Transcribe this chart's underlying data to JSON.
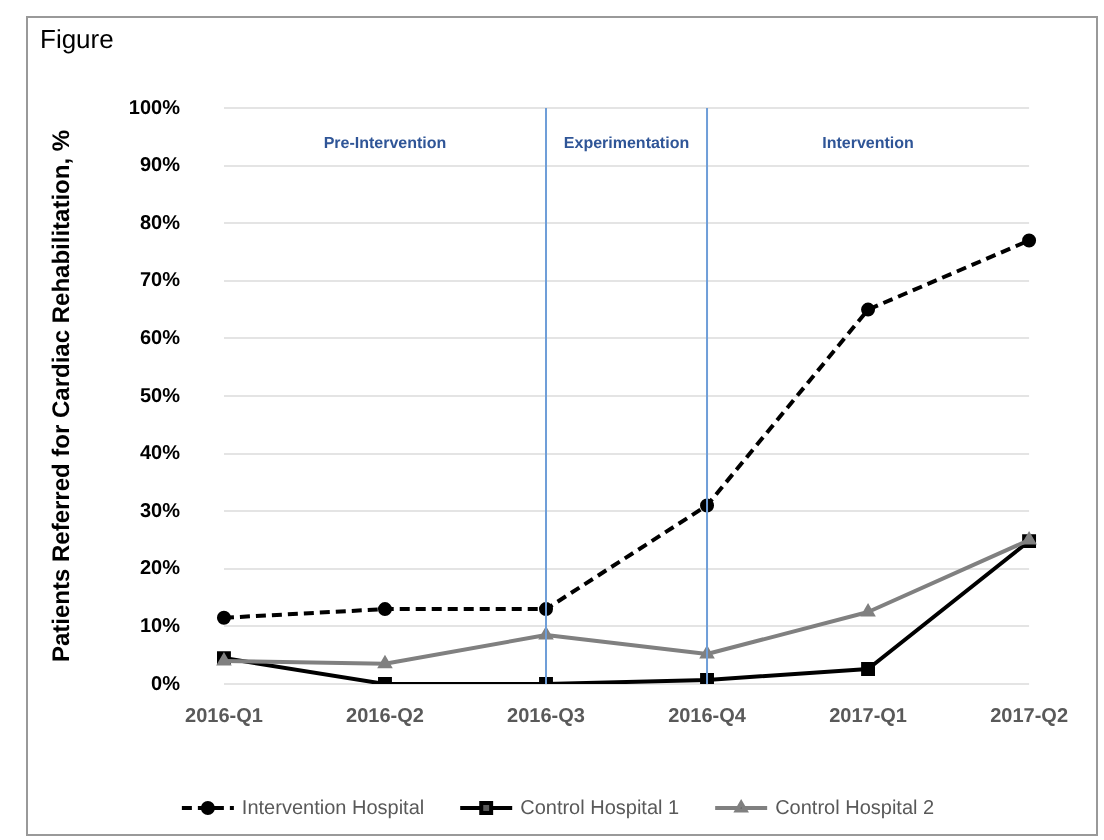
{
  "chart_data": {
    "type": "line",
    "title": "Figure",
    "ylabel": "Patients Referred for Cardiac Rehabilitation, %",
    "categories": [
      "2016-Q1",
      "2016-Q2",
      "2016-Q3",
      "2016-Q4",
      "2017-Q1",
      "2017-Q2"
    ],
    "series": [
      {
        "name": "Intervention Hospital",
        "color": "#000000",
        "marker": "circle",
        "line_style": "dashed",
        "values": [
          11.5,
          13,
          13,
          31,
          65,
          77
        ]
      },
      {
        "name": "Control Hospital 1",
        "color": "#000000",
        "marker": "square",
        "line_style": "solid",
        "values": [
          4.5,
          0,
          0,
          0.7,
          2.6,
          24.8
        ]
      },
      {
        "name": "Control Hospital 2",
        "color": "#808080",
        "marker": "triangle",
        "line_style": "solid",
        "values": [
          4,
          3.5,
          8.5,
          5.2,
          12.5,
          25
        ]
      }
    ],
    "ylim": [
      0,
      100
    ],
    "yticks": [
      {
        "value": 0,
        "label": "0%"
      },
      {
        "value": 10,
        "label": "10%"
      },
      {
        "value": 20,
        "label": "20%"
      },
      {
        "value": 30,
        "label": "30%"
      },
      {
        "value": 40,
        "label": "40%"
      },
      {
        "value": 50,
        "label": "50%"
      },
      {
        "value": 60,
        "label": "60%"
      },
      {
        "value": 70,
        "label": "70%"
      },
      {
        "value": 80,
        "label": "80%"
      },
      {
        "value": 90,
        "label": "90%"
      },
      {
        "value": 100,
        "label": "100%"
      }
    ],
    "ref_lines": [
      {
        "axis": "x",
        "value": "2016-Q3",
        "color": "#6f9ed8"
      },
      {
        "axis": "x",
        "value": "2016-Q4",
        "color": "#6f9ed8"
      }
    ],
    "annotations": [
      "Pre-Intervention",
      "Experimentation",
      "Intervention"
    ],
    "grid": "y",
    "legend": "bottom"
  }
}
